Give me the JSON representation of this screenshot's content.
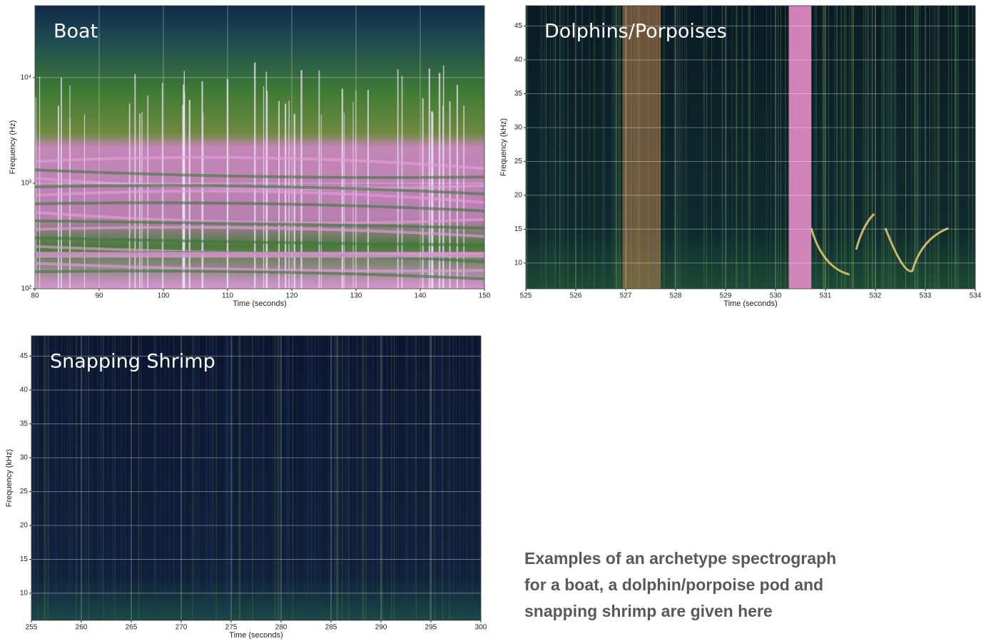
{
  "chart_data": [
    {
      "type": "spectrogram",
      "title": "Boat",
      "xlabel": "Time (seconds)",
      "ylabel": "Frequency (Hz)",
      "xlim": [
        80,
        150
      ],
      "xticks": [
        80,
        90,
        100,
        110,
        120,
        130,
        140,
        150
      ],
      "ylim": [
        100,
        48000
      ],
      "yscale": "log",
      "yticks": [
        {
          "value": 100,
          "label": "10²"
        },
        {
          "value": 1000,
          "label": "10³"
        },
        {
          "value": 10000,
          "label": "10⁴"
        }
      ],
      "grid": true
    },
    {
      "type": "spectrogram",
      "title": "Dolphins/Porpoises",
      "xlabel": "Time (seconds)",
      "ylabel": "Frequency (kHz)",
      "xlim": [
        525,
        534
      ],
      "xticks": [
        525,
        526,
        527,
        528,
        529,
        530,
        531,
        532,
        533,
        534
      ],
      "ylim": [
        6.2,
        48
      ],
      "yticks": [
        10,
        15,
        20,
        25,
        30,
        35,
        40,
        45
      ],
      "grid": true
    },
    {
      "type": "spectrogram",
      "title": "Snapping Shrimp",
      "xlabel": "Time (seconds)",
      "ylabel": "Frequency (kHz)",
      "xlim": [
        255,
        300
      ],
      "xticks": [
        255,
        260,
        265,
        270,
        275,
        280,
        285,
        290,
        295,
        300
      ],
      "ylim": [
        6,
        48
      ],
      "yticks": [
        10,
        15,
        20,
        25,
        30,
        35,
        40,
        45
      ],
      "grid": true
    }
  ],
  "caption": {
    "lines": [
      "Examples of an archetype spectrograph",
      "for a boat, a dolphin/porpoise pod and",
      "snapping shrimp are given here"
    ]
  }
}
